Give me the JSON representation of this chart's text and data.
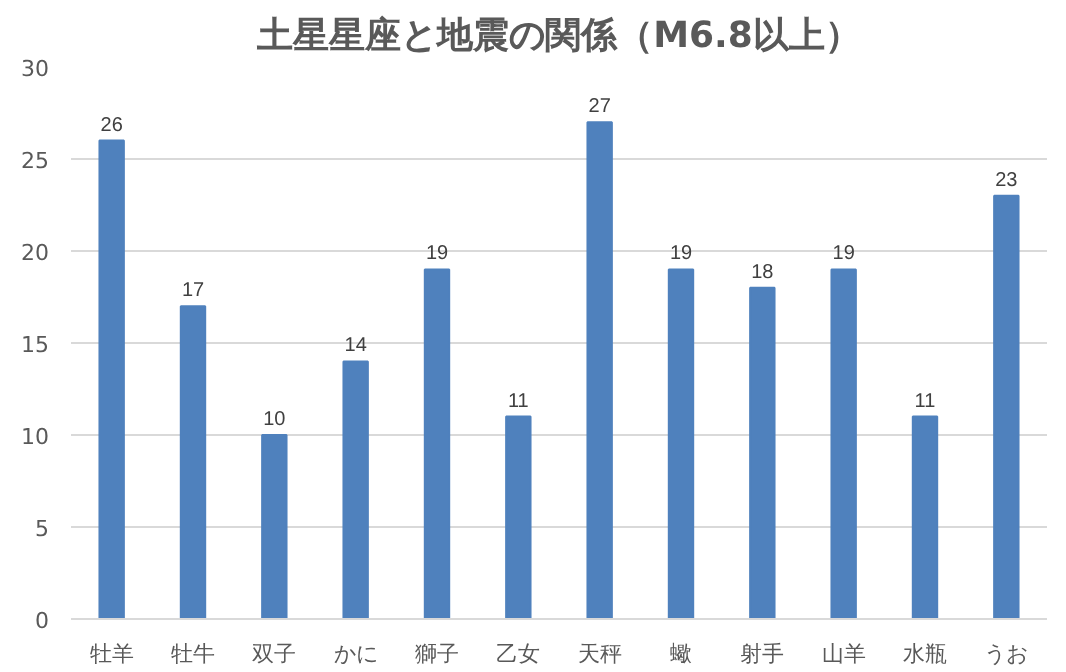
{
  "chart_data": {
    "type": "bar",
    "title": "土星星座と地震の関係（M6.8以上）",
    "categories": [
      "牡羊",
      "牡牛",
      "双子",
      "かに",
      "獅子",
      "乙女",
      "天秤",
      "蠍",
      "射手",
      "山羊",
      "水瓶",
      "うお"
    ],
    "values": [
      26,
      17,
      10,
      14,
      19,
      11,
      27,
      19,
      18,
      19,
      11,
      23
    ],
    "color": "#4f81bd",
    "ylim": [
      0,
      30
    ],
    "yticks": [
      0,
      5,
      10,
      15,
      20,
      25,
      30
    ],
    "grid": "y",
    "data_labels": true
  }
}
